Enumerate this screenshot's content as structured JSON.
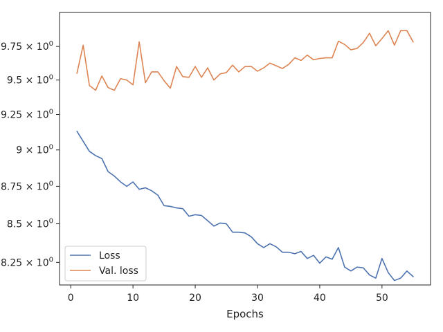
{
  "chart_data": {
    "type": "line",
    "title": "",
    "xlabel": "Epochs",
    "ylabel": "",
    "yscale": "log",
    "xlim": [
      -1.8,
      57.8
    ],
    "ylim": [
      8.107,
      10.01
    ],
    "grid": false,
    "legend_position": "lower-left",
    "x_ticks": [
      {
        "value": 0,
        "label": "0"
      },
      {
        "value": 10,
        "label": "10"
      },
      {
        "value": 20,
        "label": "20"
      },
      {
        "value": 30,
        "label": "30"
      },
      {
        "value": 40,
        "label": "40"
      },
      {
        "value": 50,
        "label": "50"
      }
    ],
    "y_ticks": [
      {
        "value": 8.25,
        "base": "8.25",
        "exp": "0"
      },
      {
        "value": 8.5,
        "base": "8.5",
        "exp": "0"
      },
      {
        "value": 8.75,
        "base": "8.75",
        "exp": "0"
      },
      {
        "value": 9.0,
        "base": "9",
        "exp": "0"
      },
      {
        "value": 9.25,
        "base": "9.25",
        "exp": "0"
      },
      {
        "value": 9.5,
        "base": "9.5",
        "exp": "0"
      },
      {
        "value": 9.75,
        "base": "9.75",
        "exp": "0"
      }
    ],
    "y_tick_times": "×",
    "y_tick_base": "10",
    "x": [
      1,
      2,
      3,
      4,
      5,
      6,
      7,
      8,
      9,
      10,
      11,
      12,
      13,
      14,
      15,
      16,
      17,
      18,
      19,
      20,
      21,
      22,
      23,
      24,
      25,
      26,
      27,
      28,
      29,
      30,
      31,
      32,
      33,
      34,
      35,
      36,
      37,
      38,
      39,
      40,
      41,
      42,
      43,
      44,
      45,
      46,
      47,
      48,
      49,
      50,
      51,
      52,
      53,
      54,
      55
    ],
    "series": [
      {
        "name": "Loss",
        "color": "#4c72b0",
        "values": [
          9.13,
          9.06,
          8.99,
          8.96,
          8.94,
          8.85,
          8.82,
          8.78,
          8.75,
          8.78,
          8.73,
          8.74,
          8.72,
          8.69,
          8.62,
          8.615,
          8.605,
          8.6,
          8.55,
          8.56,
          8.555,
          8.52,
          8.485,
          8.505,
          8.5,
          8.445,
          8.445,
          8.44,
          8.415,
          8.37,
          8.345,
          8.37,
          8.35,
          8.315,
          8.315,
          8.305,
          8.32,
          8.275,
          8.295,
          8.245,
          8.285,
          8.27,
          8.345,
          8.22,
          8.195,
          8.22,
          8.215,
          8.17,
          8.15,
          8.275,
          8.185,
          8.135,
          8.15,
          8.195,
          8.16
        ]
      },
      {
        "name": "Val. loss",
        "color": "#dd8452",
        "values": [
          9.55,
          9.76,
          9.46,
          9.425,
          9.53,
          9.445,
          9.425,
          9.51,
          9.5,
          9.465,
          9.785,
          9.48,
          9.56,
          9.56,
          9.495,
          9.44,
          9.6,
          9.525,
          9.52,
          9.6,
          9.52,
          9.59,
          9.5,
          9.545,
          9.555,
          9.61,
          9.56,
          9.6,
          9.6,
          9.565,
          9.59,
          9.625,
          9.605,
          9.585,
          9.615,
          9.665,
          9.645,
          9.685,
          9.65,
          9.66,
          9.665,
          9.665,
          9.79,
          9.765,
          9.725,
          9.735,
          9.78,
          9.85,
          9.755,
          9.81,
          9.87,
          9.76,
          9.87,
          9.87,
          9.785
        ]
      }
    ]
  }
}
